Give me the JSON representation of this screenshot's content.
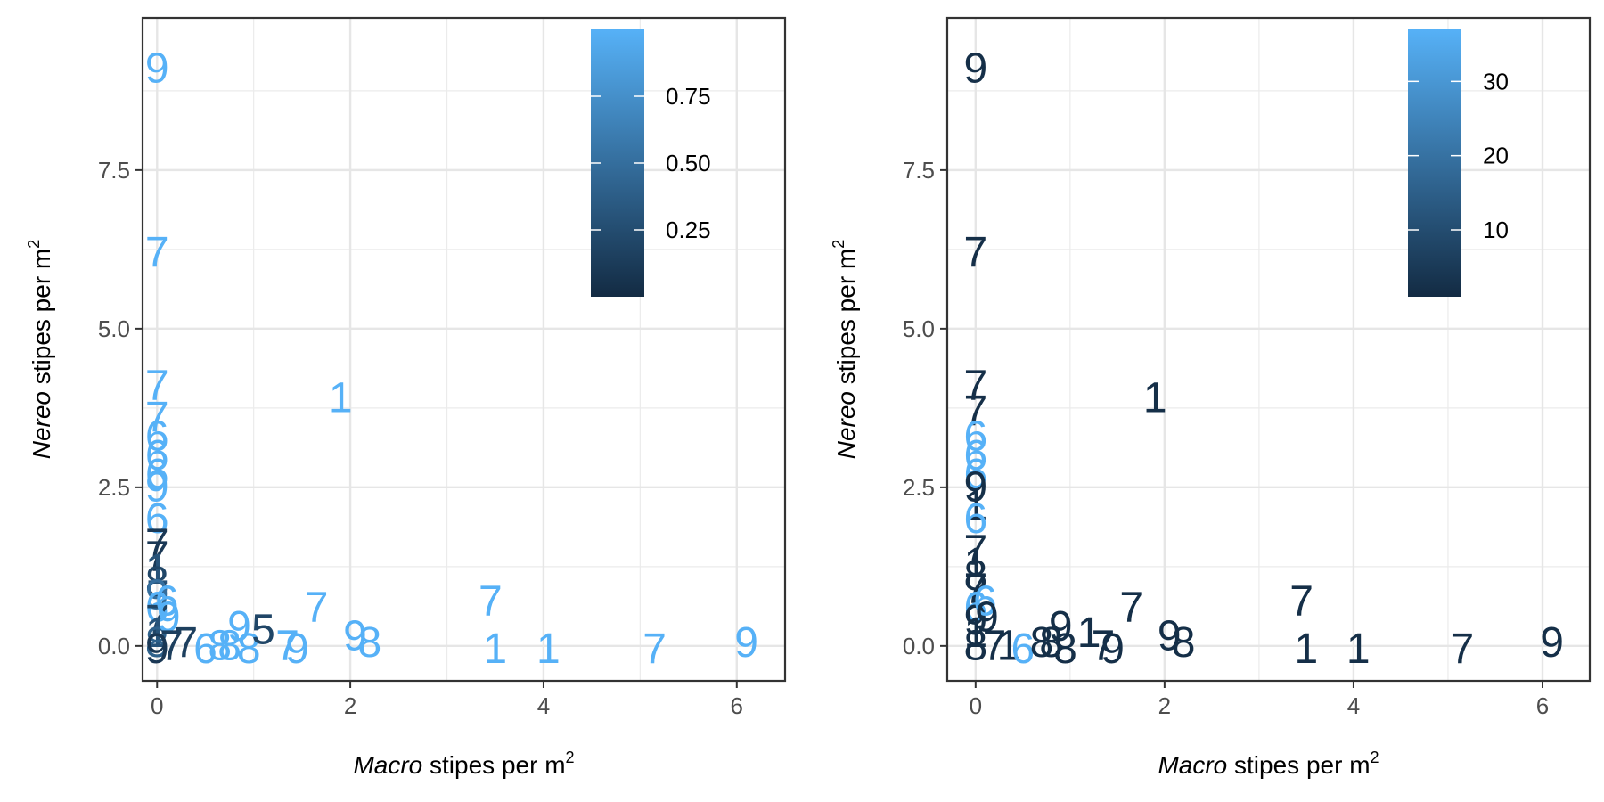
{
  "chart_data": [
    {
      "type": "scatter",
      "mark": "text",
      "xlabel": {
        "italic": "Macro",
        "rest": " stipes per m",
        "sup": "2"
      },
      "ylabel": {
        "italic": "Nereo",
        "rest": " stipes per m",
        "sup": "2"
      },
      "xlim": [
        -0.15,
        6.5
      ],
      "ylim": [
        -0.55,
        9.9
      ],
      "xticks": [
        0,
        2,
        4,
        6
      ],
      "xtick_labels": [
        "0",
        "2",
        "4",
        "6"
      ],
      "yticks": [
        0,
        2.5,
        5,
        7.5
      ],
      "ytick_labels": [
        "0.0",
        "2.5",
        "5.0",
        "7.5"
      ],
      "grid": true,
      "colorbar": {
        "position": "top-right",
        "min": 0,
        "max": 1,
        "ticks": [
          0.25,
          0.5,
          0.75
        ],
        "tick_labels": [
          "0.25",
          "0.50",
          "0.75"
        ],
        "low_color": "#132B43",
        "high_color": "#56B1F7"
      },
      "points": [
        {
          "x": 0,
          "y": 9.1,
          "label": "9",
          "c": 1
        },
        {
          "x": 0,
          "y": 6.2,
          "label": "7",
          "c": 1
        },
        {
          "x": 0,
          "y": 4.1,
          "label": "7",
          "c": 1
        },
        {
          "x": 0,
          "y": 3.6,
          "label": "7",
          "c": 1
        },
        {
          "x": 0,
          "y": 3.3,
          "label": "6",
          "c": 1
        },
        {
          "x": 0,
          "y": 3.0,
          "label": "6",
          "c": 1
        },
        {
          "x": 0,
          "y": 2.7,
          "label": "6",
          "c": 1
        },
        {
          "x": 0,
          "y": 2.5,
          "label": "9",
          "c": 1
        },
        {
          "x": 0,
          "y": 2.0,
          "label": "6",
          "c": 1
        },
        {
          "x": 0,
          "y": 1.6,
          "label": "7",
          "c": 0.1
        },
        {
          "x": 0,
          "y": 1.4,
          "label": "7",
          "c": 0.1
        },
        {
          "x": 0,
          "y": 1.2,
          "label": "1",
          "c": 0.3
        },
        {
          "x": 0,
          "y": 1.0,
          "label": "8",
          "c": 0.2
        },
        {
          "x": 0,
          "y": 0.8,
          "label": "9",
          "c": 0.5
        },
        {
          "x": 0,
          "y": 0.6,
          "label": "6",
          "c": 1
        },
        {
          "x": 0,
          "y": 0.4,
          "label": "7",
          "c": 0.2
        },
        {
          "x": 0,
          "y": 0.2,
          "label": "1",
          "c": 0.3
        },
        {
          "x": 0,
          "y": 0.05,
          "label": "8",
          "c": 0.4
        },
        {
          "x": 0,
          "y": -0.05,
          "label": "9",
          "c": 0.1
        },
        {
          "x": 0.1,
          "y": 0.7,
          "label": "6",
          "c": 1
        },
        {
          "x": 0.12,
          "y": 0.45,
          "label": "9",
          "c": 1
        },
        {
          "x": 0.15,
          "y": 0.0,
          "label": "7",
          "c": 0.15
        },
        {
          "x": 0.3,
          "y": 0.05,
          "label": "7",
          "c": 0.15
        },
        {
          "x": 0.5,
          "y": -0.05,
          "label": "6",
          "c": 1
        },
        {
          "x": 0.65,
          "y": 0.0,
          "label": "8",
          "c": 1
        },
        {
          "x": 0.75,
          "y": 0.0,
          "label": "8",
          "c": 1
        },
        {
          "x": 0.85,
          "y": 0.3,
          "label": "9",
          "c": 1
        },
        {
          "x": 0.95,
          "y": -0.05,
          "label": "8",
          "c": 1
        },
        {
          "x": 1.1,
          "y": 0.25,
          "label": "5",
          "c": 0.2
        },
        {
          "x": 1.35,
          "y": 0.0,
          "label": "7",
          "c": 1
        },
        {
          "x": 1.45,
          "y": -0.05,
          "label": "9",
          "c": 1
        },
        {
          "x": 1.65,
          "y": 0.6,
          "label": "7",
          "c": 1
        },
        {
          "x": 1.9,
          "y": 3.9,
          "label": "1",
          "c": 1
        },
        {
          "x": 2.05,
          "y": 0.15,
          "label": "9",
          "c": 1
        },
        {
          "x": 2.2,
          "y": 0.05,
          "label": "8",
          "c": 1
        },
        {
          "x": 3.45,
          "y": 0.7,
          "label": "7",
          "c": 1
        },
        {
          "x": 3.5,
          "y": -0.05,
          "label": "1",
          "c": 1
        },
        {
          "x": 4.05,
          "y": -0.05,
          "label": "1",
          "c": 1
        },
        {
          "x": 5.15,
          "y": -0.05,
          "label": "7",
          "c": 1
        },
        {
          "x": 6.1,
          "y": 0.05,
          "label": "9",
          "c": 1
        }
      ]
    },
    {
      "type": "scatter",
      "mark": "text",
      "xlabel": {
        "italic": "Macro",
        "rest": " stipes per m",
        "sup": "2"
      },
      "ylabel": {
        "italic": "Nereo",
        "rest": " stipes per m",
        "sup": "2"
      },
      "xlim": [
        -0.3,
        6.5
      ],
      "ylim": [
        -0.55,
        9.9
      ],
      "xticks": [
        0,
        2,
        4,
        6
      ],
      "xtick_labels": [
        "0",
        "2",
        "4",
        "6"
      ],
      "yticks": [
        0,
        2.5,
        5,
        7.5
      ],
      "ytick_labels": [
        "0.0",
        "2.5",
        "5.0",
        "7.5"
      ],
      "grid": true,
      "colorbar": {
        "position": "top-right",
        "min": 1,
        "max": 37,
        "ticks": [
          10,
          20,
          30
        ],
        "tick_labels": [
          "10",
          "20",
          "30"
        ],
        "low_color": "#132B43",
        "high_color": "#56B1F7"
      },
      "points": [
        {
          "x": 0,
          "y": 9.1,
          "label": "9",
          "c": 2
        },
        {
          "x": 0,
          "y": 6.2,
          "label": "7",
          "c": 2
        },
        {
          "x": 0,
          "y": 4.1,
          "label": "7",
          "c": 2
        },
        {
          "x": 0,
          "y": 3.7,
          "label": "7",
          "c": 2
        },
        {
          "x": 0,
          "y": 3.3,
          "label": "6",
          "c": 37
        },
        {
          "x": 0,
          "y": 3.0,
          "label": "6",
          "c": 37
        },
        {
          "x": 0,
          "y": 2.7,
          "label": "6",
          "c": 37
        },
        {
          "x": 0,
          "y": 2.5,
          "label": "9",
          "c": 2
        },
        {
          "x": 0,
          "y": 2.2,
          "label": "1",
          "c": 2
        },
        {
          "x": 0,
          "y": 2.0,
          "label": "6",
          "c": 37
        },
        {
          "x": 0,
          "y": 1.5,
          "label": "7",
          "c": 2
        },
        {
          "x": 0,
          "y": 1.3,
          "label": "1",
          "c": 2
        },
        {
          "x": 0,
          "y": 1.1,
          "label": "8",
          "c": 2
        },
        {
          "x": 0,
          "y": 0.9,
          "label": "7",
          "c": 2
        },
        {
          "x": 0,
          "y": 0.6,
          "label": "6",
          "c": 37
        },
        {
          "x": 0,
          "y": 0.4,
          "label": "9",
          "c": 2
        },
        {
          "x": 0,
          "y": 0.2,
          "label": "1",
          "c": 2
        },
        {
          "x": 0,
          "y": 0.0,
          "label": "8",
          "c": 2
        },
        {
          "x": 0.1,
          "y": 0.7,
          "label": "6",
          "c": 37
        },
        {
          "x": 0.12,
          "y": 0.45,
          "label": "9",
          "c": 2
        },
        {
          "x": 0.2,
          "y": 0.0,
          "label": "7",
          "c": 2
        },
        {
          "x": 0.35,
          "y": 0.0,
          "label": "1",
          "c": 2
        },
        {
          "x": 0.5,
          "y": -0.05,
          "label": "6",
          "c": 37
        },
        {
          "x": 0.7,
          "y": 0.05,
          "label": "8",
          "c": 2
        },
        {
          "x": 0.8,
          "y": 0.05,
          "label": "8",
          "c": 2
        },
        {
          "x": 0.9,
          "y": 0.3,
          "label": "9",
          "c": 2
        },
        {
          "x": 0.95,
          "y": -0.05,
          "label": "8",
          "c": 2
        },
        {
          "x": 1.2,
          "y": 0.2,
          "label": "1",
          "c": 2
        },
        {
          "x": 1.35,
          "y": 0.0,
          "label": "7",
          "c": 2
        },
        {
          "x": 1.45,
          "y": -0.05,
          "label": "9",
          "c": 2
        },
        {
          "x": 1.65,
          "y": 0.6,
          "label": "7",
          "c": 2
        },
        {
          "x": 1.9,
          "y": 3.9,
          "label": "1",
          "c": 2
        },
        {
          "x": 2.05,
          "y": 0.15,
          "label": "9",
          "c": 2
        },
        {
          "x": 2.2,
          "y": 0.05,
          "label": "8",
          "c": 2
        },
        {
          "x": 3.45,
          "y": 0.7,
          "label": "7",
          "c": 2
        },
        {
          "x": 3.5,
          "y": -0.05,
          "label": "1",
          "c": 2
        },
        {
          "x": 4.05,
          "y": -0.05,
          "label": "1",
          "c": 2
        },
        {
          "x": 5.15,
          "y": -0.05,
          "label": "7",
          "c": 2
        },
        {
          "x": 6.1,
          "y": 0.05,
          "label": "9",
          "c": 2
        }
      ]
    }
  ]
}
